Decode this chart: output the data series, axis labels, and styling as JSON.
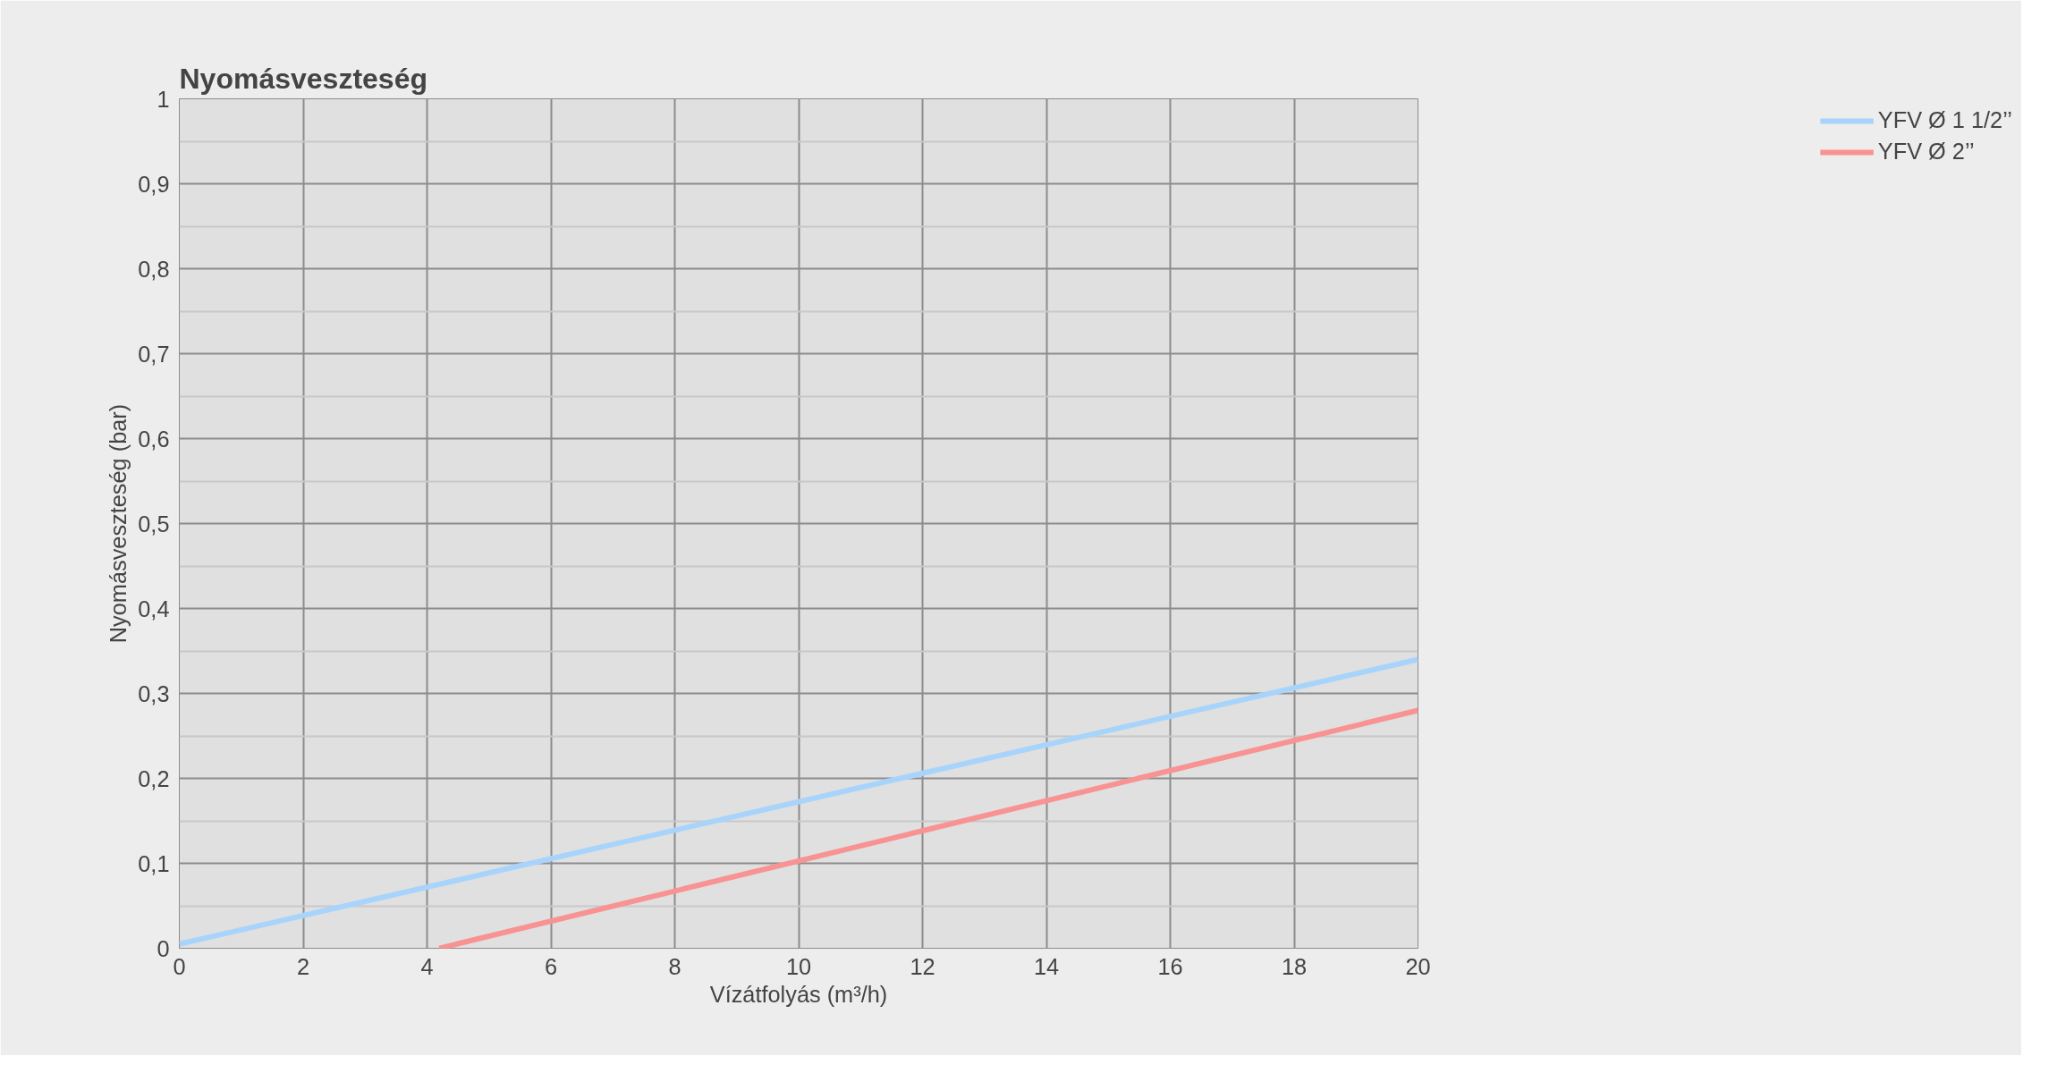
{
  "chart_data": {
    "type": "line",
    "title": "Nyomásveszteség",
    "xlabel": "Vízátfolyás (m³/h)",
    "ylabel": "Nyomásveszteség (bar)",
    "series": [
      {
        "name": "YFV Ø 1 1/2’’",
        "color": "#a8d4fb",
        "x": [
          0,
          20
        ],
        "values": [
          0.005,
          0.34
        ]
      },
      {
        "name": "YFV Ø 2’’",
        "color": "#f99293",
        "x": [
          4.2,
          20
        ],
        "values": [
          0,
          0.28
        ]
      }
    ],
    "xlim": [
      0,
      20
    ],
    "xticks": [
      0,
      2,
      4,
      6,
      8,
      10,
      12,
      14,
      16,
      18,
      20
    ],
    "ylim": [
      0,
      1
    ],
    "yticks": [
      0,
      {
        "value": 0.1,
        "label": "0,1"
      },
      {
        "value": 0.2,
        "label": "0,2"
      },
      {
        "value": 0.3,
        "label": "0,3"
      },
      {
        "value": 0.4,
        "label": "0,4"
      },
      {
        "value": 0.5,
        "label": "0,5"
      },
      {
        "value": 0.6,
        "label": "0,6"
      },
      {
        "value": 0.7,
        "label": "0,7"
      },
      {
        "value": 0.8,
        "label": "0,8"
      },
      {
        "value": 0.9,
        "label": "0,9"
      },
      1
    ],
    "grid": true,
    "legend": "right",
    "marker": "none",
    "line_style": "solid"
  }
}
